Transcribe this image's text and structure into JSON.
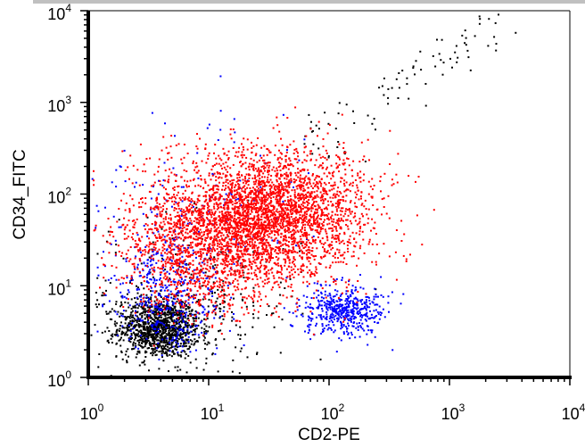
{
  "chart_data": {
    "type": "scatter",
    "subtype": "flow-cytometry-dot-plot",
    "xlabel": "CD2-PE",
    "ylabel": "CD34_FITC",
    "xscale": "log",
    "yscale": "log",
    "xlim": [
      1,
      10000
    ],
    "ylim": [
      1,
      10000
    ],
    "xticks": [
      {
        "base": "10",
        "exp": "0"
      },
      {
        "base": "10",
        "exp": "1"
      },
      {
        "base": "10",
        "exp": "2"
      },
      {
        "base": "10",
        "exp": "3"
      },
      {
        "base": "10",
        "exp": "4"
      }
    ],
    "yticks": [
      {
        "base": "10",
        "exp": "0"
      },
      {
        "base": "10",
        "exp": "1"
      },
      {
        "base": "10",
        "exp": "2"
      },
      {
        "base": "10",
        "exp": "3"
      },
      {
        "base": "10",
        "exp": "4"
      }
    ],
    "grid": false,
    "frame_color": "#000000",
    "header_bar_color": "#c0c0c0",
    "series": [
      {
        "color": "#000000",
        "populations": [
          {
            "center_x": 3.8,
            "center_y": 3.5,
            "spread_decades_x": 0.17,
            "spread_decades_y": 0.16,
            "events": 1100
          },
          {
            "center_x": 6.0,
            "center_y": 6.0,
            "spread_decades_x": 0.5,
            "spread_decades_y": 0.45,
            "events": 350
          }
        ],
        "diagonal_tail": {
          "from_x": 60,
          "from_y": 300,
          "to_x": 3000,
          "to_y": 9000,
          "spread_decades": 0.12,
          "events": 90
        }
      },
      {
        "color": "#0000ff",
        "populations": [
          {
            "center_x": 4.5,
            "center_y": 8.0,
            "spread_decades_x": 0.22,
            "spread_decades_y": 0.3,
            "events": 420
          },
          {
            "center_x": 130,
            "center_y": 5.5,
            "spread_decades_x": 0.17,
            "spread_decades_y": 0.14,
            "events": 480
          },
          {
            "center_x": 8.0,
            "center_y": 60.0,
            "spread_decades_x": 0.45,
            "spread_decades_y": 0.5,
            "events": 180
          }
        ]
      },
      {
        "color": "#ff0000",
        "populations": [
          {
            "center_x": 30.0,
            "center_y": 60.0,
            "spread_decades_x": 0.42,
            "spread_decades_y": 0.36,
            "events": 3200
          },
          {
            "center_x": 8.0,
            "center_y": 25.0,
            "spread_decades_x": 0.35,
            "spread_decades_y": 0.35,
            "events": 1100
          }
        ]
      }
    ]
  }
}
